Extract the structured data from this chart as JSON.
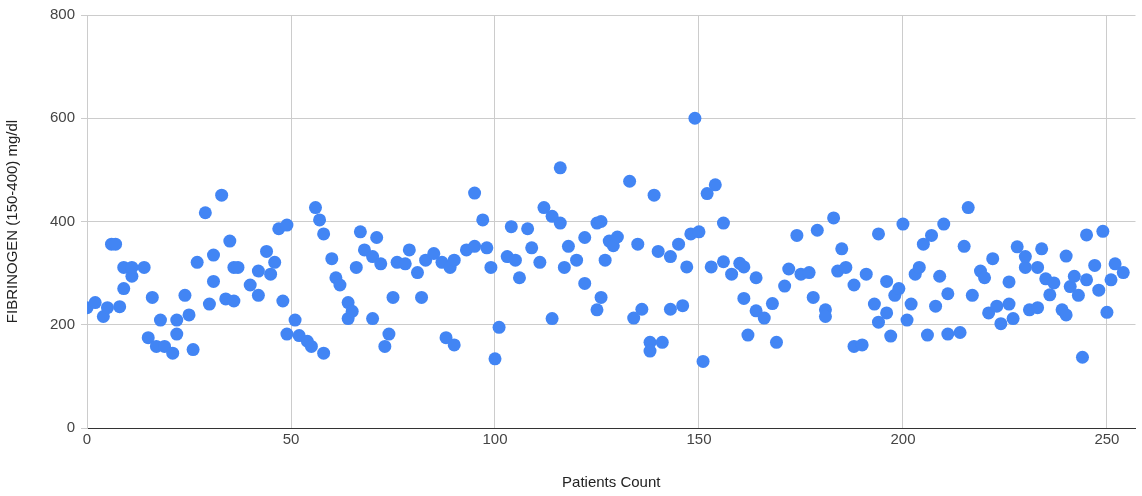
{
  "chart_data": {
    "type": "scatter",
    "xlabel": "Patients Count",
    "ylabel": "FIBRINOGEN (150-400) mg/dl",
    "xlim": [
      0,
      257
    ],
    "xticks": [
      0,
      50,
      100,
      150,
      200,
      250
    ],
    "ylim": [
      0,
      800
    ],
    "yticks": [
      0,
      200,
      400,
      600,
      800
    ],
    "grid": true,
    "legend": false,
    "marker": "circle",
    "series": [
      {
        "color": "#4285f4",
        "x": [
          0,
          2,
          4,
          5,
          6,
          7,
          8,
          9,
          9,
          11,
          11,
          14,
          15,
          16,
          17,
          18,
          19,
          21,
          22,
          22,
          24,
          25,
          26,
          27,
          29,
          30,
          31,
          31,
          33,
          34,
          35,
          36,
          36,
          37,
          40,
          42,
          42,
          44,
          45,
          46,
          47,
          48,
          49,
          49,
          51,
          52,
          54,
          55,
          56,
          57,
          58,
          58,
          60,
          61,
          62,
          64,
          64,
          65,
          66,
          67,
          68,
          70,
          70,
          71,
          72,
          73,
          74,
          75,
          76,
          78,
          79,
          81,
          82,
          83,
          85,
          87,
          88,
          89,
          90,
          90,
          93,
          95,
          95,
          97,
          98,
          99,
          100,
          101,
          103,
          104,
          105,
          106,
          108,
          109,
          111,
          112,
          114,
          114,
          116,
          116,
          117,
          118,
          120,
          122,
          122,
          125,
          125,
          126,
          126,
          127,
          128,
          129,
          130,
          133,
          134,
          135,
          136,
          138,
          138,
          139,
          140,
          141,
          143,
          143,
          145,
          146,
          147,
          148,
          149,
          150,
          151,
          152,
          153,
          154,
          156,
          156,
          158,
          160,
          161,
          161,
          162,
          164,
          164,
          166,
          168,
          169,
          171,
          172,
          174,
          175,
          177,
          178,
          179,
          181,
          181,
          183,
          184,
          185,
          186,
          188,
          188,
          190,
          191,
          193,
          194,
          194,
          196,
          196,
          197,
          198,
          199,
          200,
          201,
          202,
          203,
          204,
          205,
          206,
          207,
          208,
          209,
          210,
          211,
          211,
          214,
          215,
          216,
          217,
          219,
          220,
          221,
          222,
          223,
          224,
          226,
          226,
          227,
          228,
          230,
          230,
          231,
          233,
          233,
          234,
          235,
          236,
          237,
          239,
          240,
          240,
          241,
          242,
          243,
          244,
          245,
          245,
          247,
          248,
          249,
          250,
          251,
          252,
          254
        ],
        "values": [
          233,
          243,
          216,
          233,
          356,
          356,
          235,
          270,
          311,
          294,
          311,
          311,
          175,
          253,
          158,
          209,
          158,
          145,
          209,
          182,
          257,
          219,
          152,
          321,
          417,
          240,
          335,
          284,
          451,
          250,
          362,
          246,
          311,
          311,
          277,
          257,
          304,
          342,
          298,
          321,
          386,
          246,
          393,
          182,
          209,
          179,
          168,
          158,
          427,
          403,
          376,
          145,
          328,
          291,
          277,
          212,
          243,
          226,
          311,
          380,
          345,
          332,
          212,
          369,
          318,
          158,
          182,
          253,
          321,
          318,
          345,
          301,
          253,
          325,
          338,
          321,
          175,
          311,
          325,
          161,
          345,
          352,
          455,
          403,
          349,
          311,
          134,
          195,
          332,
          390,
          325,
          291,
          386,
          349,
          321,
          427,
          212,
          410,
          397,
          504,
          311,
          352,
          325,
          280,
          369,
          229,
          397,
          400,
          253,
          325,
          362,
          353,
          370,
          478,
          213,
          356,
          230,
          166,
          149,
          451,
          342,
          166,
          332,
          230,
          356,
          237,
          312,
          376,
          600,
          380,
          129,
          454,
          312,
          471,
          397,
          322,
          298,
          319,
          312,
          251,
          180,
          291,
          227,
          213,
          241,
          166,
          275,
          308,
          373,
          298,
          301,
          253,
          383,
          229,
          216,
          407,
          304,
          347,
          311,
          277,
          158,
          161,
          298,
          240,
          376,
          205,
          284,
          223,
          178,
          257,
          270,
          395,
          209,
          240,
          298,
          311,
          356,
          180,
          373,
          236,
          294,
          395,
          182,
          260,
          185,
          352,
          427,
          257,
          304,
          291,
          223,
          328,
          236,
          202,
          240,
          283,
          212,
          351,
          311,
          332,
          229,
          311,
          233,
          347,
          289,
          258,
          281,
          229,
          333,
          219,
          274,
          294,
          257,
          137,
          287,
          374,
          315,
          267,
          381,
          224,
          287,
          318,
          301
        ]
      }
    ]
  }
}
